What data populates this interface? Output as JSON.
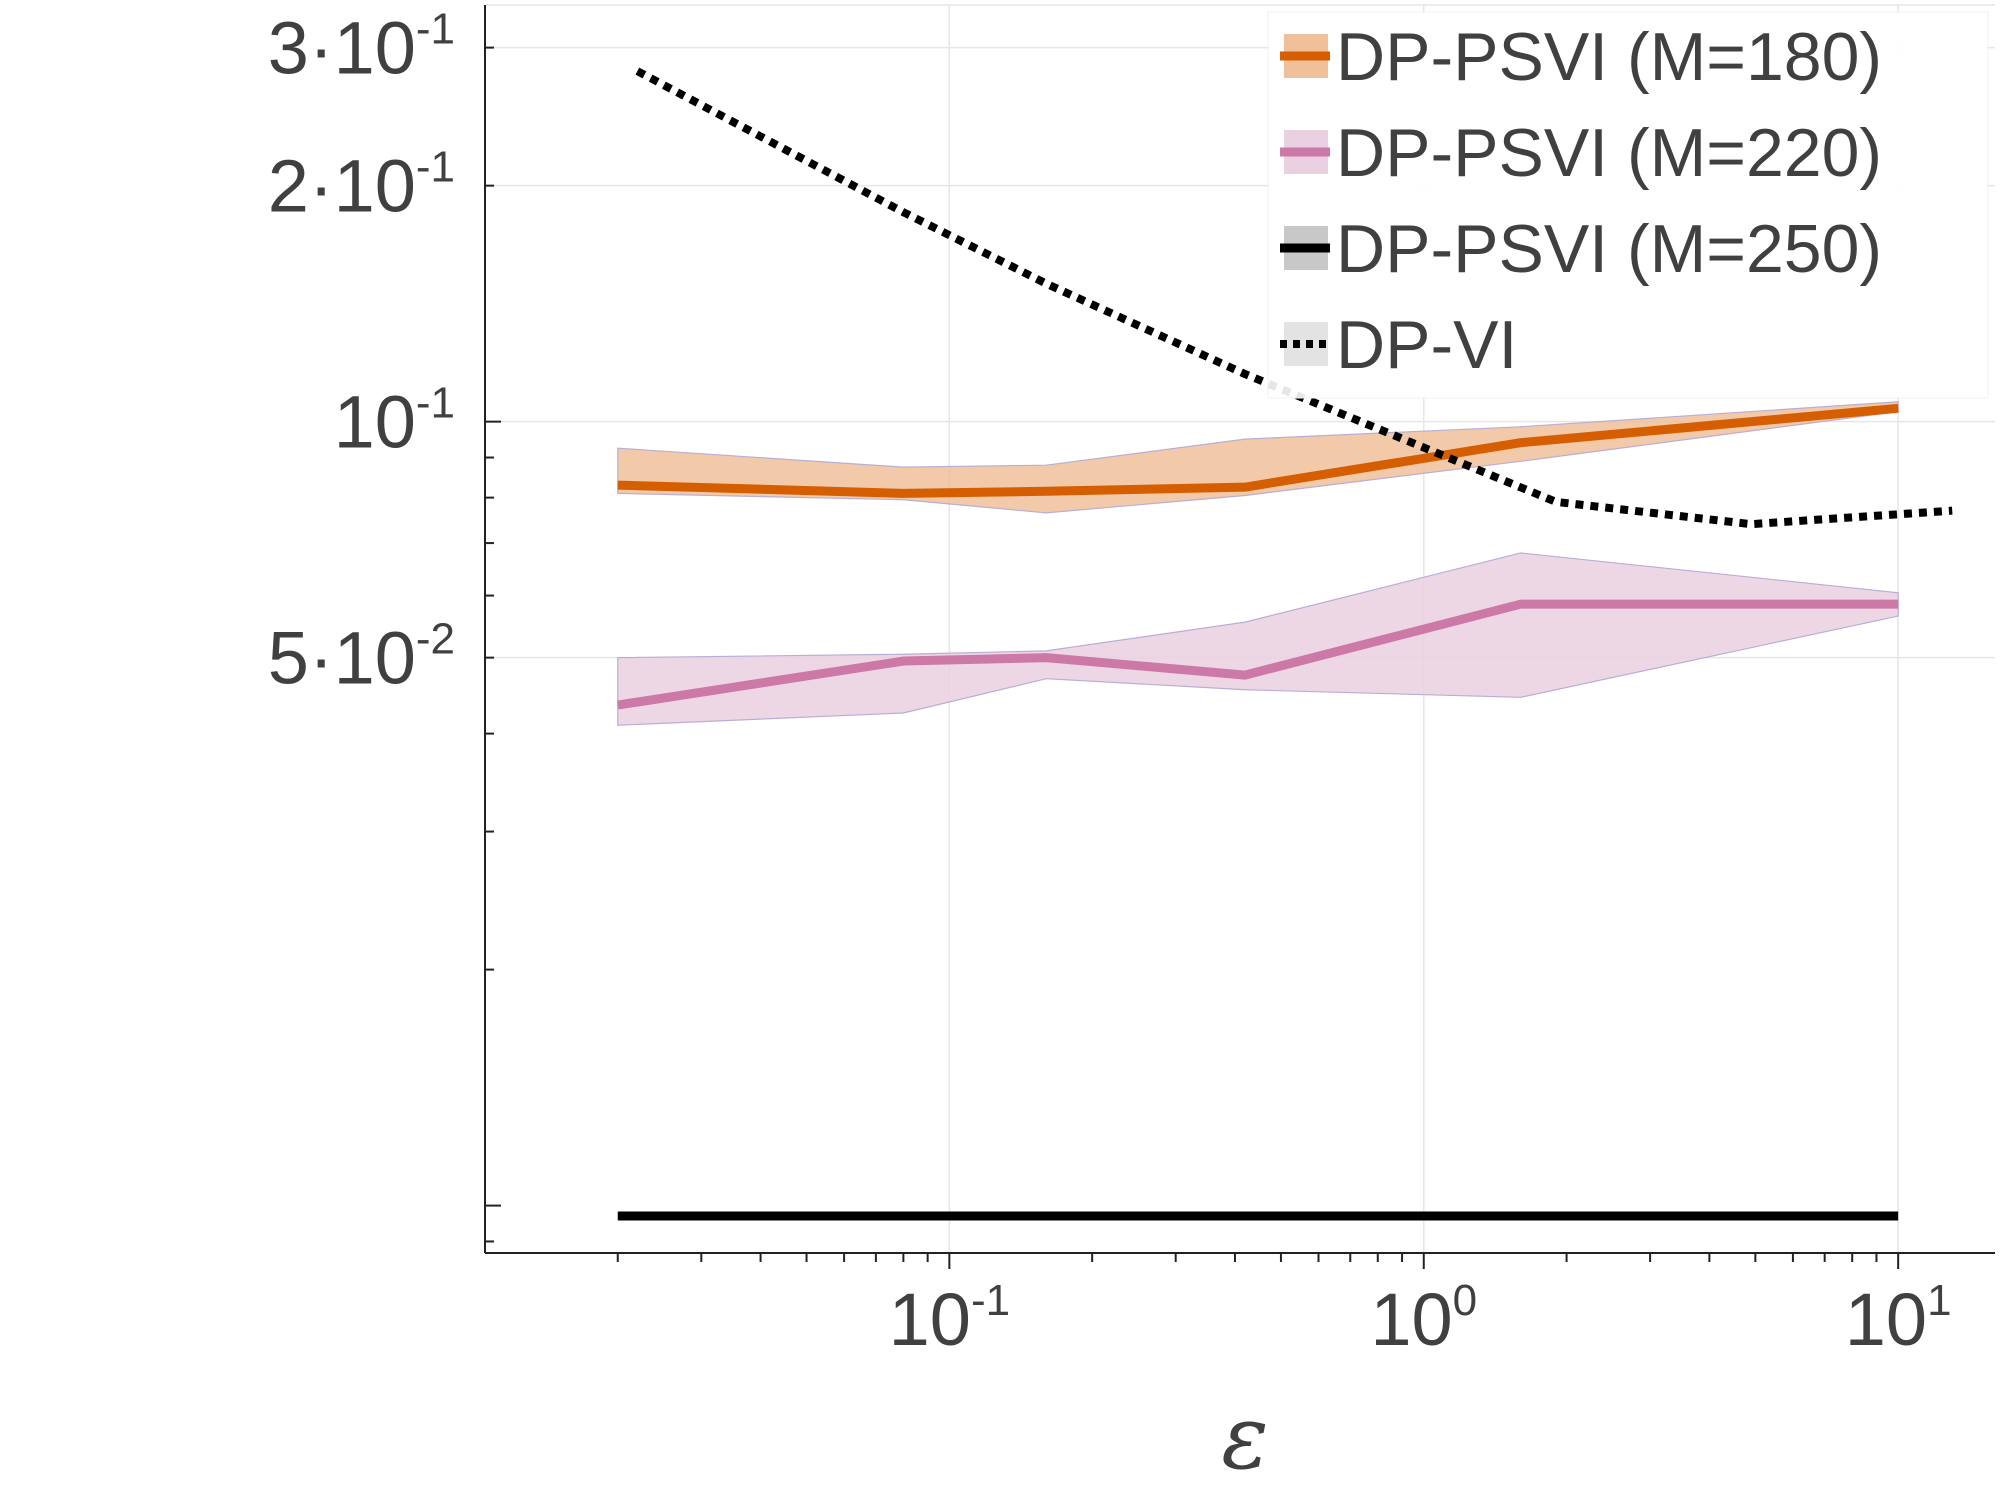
{
  "chart_data": {
    "type": "line",
    "title": "",
    "xlabel": "ε",
    "ylabel": "",
    "x_scale": "log",
    "y_scale": "log",
    "xlim": [
      0.0105,
      16
    ],
    "ylim": [
      0.0087,
      0.34
    ],
    "grid": true,
    "legend_position": "top-right",
    "x_ticks": [
      {
        "value": 0.1,
        "base": "10",
        "exp": "-1"
      },
      {
        "value": 1,
        "base": "10",
        "exp": "0"
      },
      {
        "value": 10,
        "base": "10",
        "exp": "1"
      }
    ],
    "y_ticks": [
      {
        "value": 0.3,
        "prefix": "3·10",
        "exp": "-1"
      },
      {
        "value": 0.2,
        "prefix": "2·10",
        "exp": "-1"
      },
      {
        "value": 0.1,
        "prefix": "10",
        "exp": "-1"
      },
      {
        "value": 0.05,
        "prefix": "5·10",
        "exp": "-2"
      }
    ],
    "series": [
      {
        "name": "DP-PSVI (M=180)",
        "color": "#d55e00",
        "band_color": "#f0c09a",
        "style": "solid",
        "x": [
          0.02,
          0.08,
          0.16,
          0.42,
          1.6,
          10
        ],
        "y": [
          0.083,
          0.081,
          0.0815,
          0.0825,
          0.094,
          0.104
        ],
        "lower": [
          0.081,
          0.0795,
          0.0765,
          0.0805,
          0.089,
          0.103
        ],
        "upper": [
          0.0925,
          0.0875,
          0.088,
          0.095,
          0.0985,
          0.106
        ]
      },
      {
        "name": "DP-PSVI (M=220)",
        "color": "#cc79a7",
        "band_color": "#ead0e0",
        "style": "solid",
        "x": [
          0.02,
          0.08,
          0.16,
          0.42,
          1.6,
          10
        ],
        "y": [
          0.0435,
          0.0495,
          0.05,
          0.0475,
          0.0585,
          0.0585
        ],
        "lower": [
          0.041,
          0.0425,
          0.047,
          0.0455,
          0.0445,
          0.0565
        ],
        "upper": [
          0.05,
          0.0505,
          0.051,
          0.0555,
          0.068,
          0.0605
        ]
      },
      {
        "name": "DP-PSVI (M=250)",
        "color": "#000000",
        "band_color": "#c8c8c8",
        "style": "solid",
        "x": [
          0.02,
          0.08,
          0.16,
          0.42,
          1.6,
          10
        ],
        "y": [
          0.0097,
          0.0097,
          0.0097,
          0.0097,
          0.0097,
          0.0097
        ]
      },
      {
        "name": "DP-VI",
        "color": "#000000",
        "band_color": "#e3e3e3",
        "style": "dotted",
        "x": [
          0.022,
          0.08,
          0.16,
          0.42,
          1.9,
          4.9,
          13
        ],
        "y": [
          0.28,
          0.185,
          0.15,
          0.115,
          0.079,
          0.074,
          0.077
        ]
      }
    ]
  }
}
